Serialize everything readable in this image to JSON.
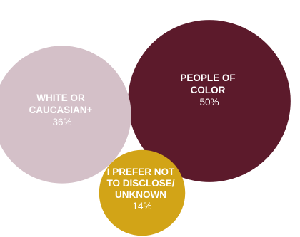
{
  "chart_data": {
    "type": "bubble",
    "title": "",
    "series": [
      {
        "name_lines": [
          "PEOPLE OF",
          "COLOR"
        ],
        "value_label": "50%",
        "value": 50,
        "color": "#5c1a2b"
      },
      {
        "name_lines": [
          "WHITE OR",
          "CAUCASIAN+"
        ],
        "value_label": "36%",
        "value": 36,
        "color": "#d4c0c8"
      },
      {
        "name_lines": [
          "I PREFER NOT",
          "TO DISCLOSE/",
          "UNKNOWN"
        ],
        "value_label": "14%",
        "value": 14,
        "color": "#d2a417"
      }
    ]
  }
}
